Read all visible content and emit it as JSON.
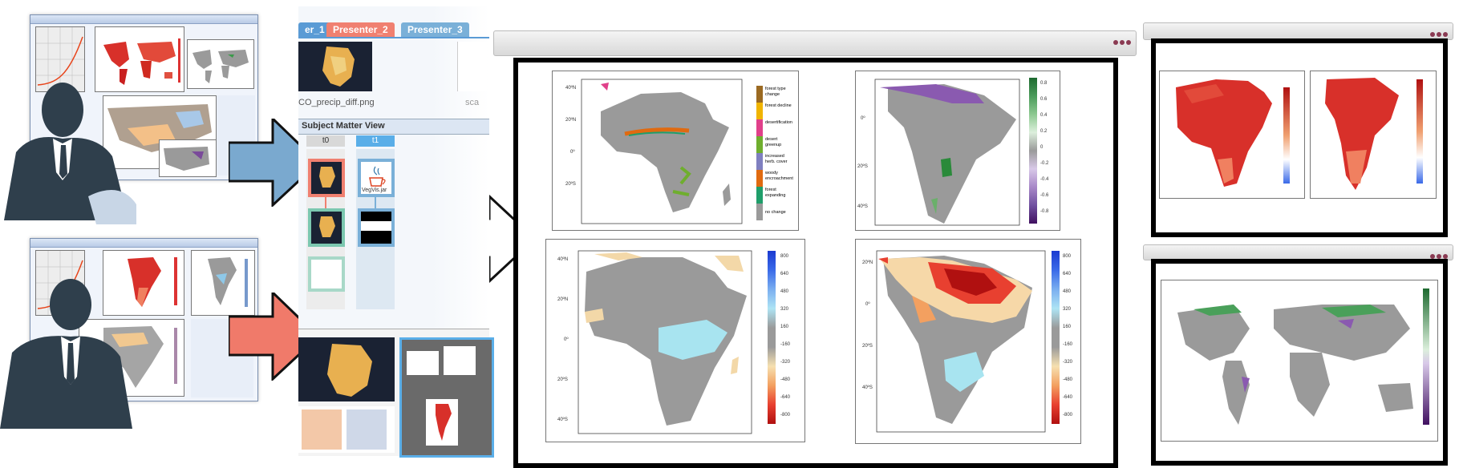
{
  "presenter_tabs": [
    {
      "label": "er_1",
      "color": "#5a9bd5"
    },
    {
      "label": "Presenter_2",
      "color": "#f08070"
    },
    {
      "label": "Presenter_3",
      "color": "#7ab0d8"
    }
  ],
  "file_label": "CO_precip_diff.png",
  "file_label_2": "sca",
  "subject_matter_view": {
    "title": "Subject Matter View",
    "columns": [
      {
        "label": "t0",
        "color": "#d8d8d8"
      },
      {
        "label": "t1",
        "color": "#5aaee8"
      }
    ],
    "java_label": "VegVis.jar"
  },
  "legend_categorical": [
    {
      "label": "forest type change",
      "color": "#9b6a22"
    },
    {
      "label": "forest decline",
      "color": "#f0b400"
    },
    {
      "label": "desertification",
      "color": "#e0408a"
    },
    {
      "label": "desert greenup",
      "color": "#6fae2e"
    },
    {
      "label": "increased herb. cover",
      "color": "#7f7fc0"
    },
    {
      "label": "woody encroachment",
      "color": "#e06a10"
    },
    {
      "label": "forest expanding",
      "color": "#1f9e6a"
    },
    {
      "label": "no change",
      "color": "#9a9a9a"
    }
  ],
  "legend_precip": [
    "800",
    "640",
    "480",
    "320",
    "160",
    "-160",
    "-320",
    "-480",
    "-640",
    "-800"
  ],
  "legend_green": [
    "0.8",
    "0.6",
    "0.4",
    "0.2",
    "0",
    "-0.2",
    "-0.4",
    "-0.6",
    "-0.8"
  ],
  "colors": {
    "arrow_blue": "#7aa9cf",
    "arrow_red": "#f07a6a",
    "silhouette": "#2f3f4c",
    "map_grey": "#9a9a9a",
    "window_blue": "#dbe6f6"
  }
}
